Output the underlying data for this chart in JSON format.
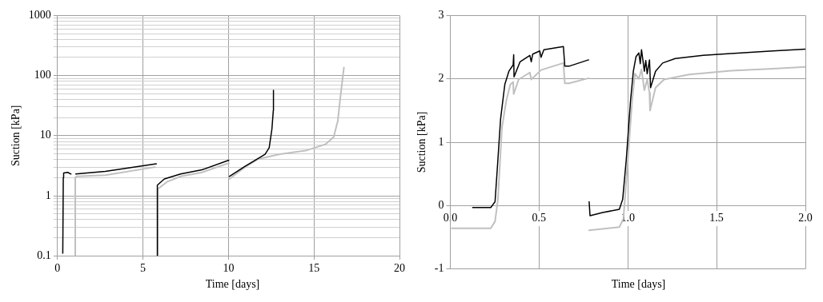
{
  "chart_data": [
    {
      "type": "line",
      "xlabel": "Time [days]",
      "ylabel": "Suction [kPa]",
      "log": "y",
      "grid": true,
      "marker": "none",
      "line_style": "solid",
      "xlim": [
        0,
        20
      ],
      "xticks": [
        0,
        5,
        10,
        15,
        20
      ],
      "ylim": [
        0.1,
        1000
      ],
      "yticks": [
        {
          "value": 0.1,
          "label": "0.1"
        },
        {
          "value": 0.2,
          "label": null
        },
        {
          "value": 0.3,
          "label": null
        },
        {
          "value": 0.4,
          "label": null
        },
        {
          "value": 0.5,
          "label": null
        },
        {
          "value": 0.6,
          "label": null
        },
        {
          "value": 0.7,
          "label": null
        },
        {
          "value": 0.8,
          "label": null
        },
        {
          "value": 0.9,
          "label": null
        },
        1,
        {
          "value": 2,
          "label": null
        },
        {
          "value": 3,
          "label": null
        },
        {
          "value": 4,
          "label": null
        },
        {
          "value": 5,
          "label": null
        },
        {
          "value": 6,
          "label": null
        },
        {
          "value": 7,
          "label": null
        },
        {
          "value": 8,
          "label": null
        },
        {
          "value": 9,
          "label": null
        },
        10,
        {
          "value": 20,
          "label": null
        },
        {
          "value": 30,
          "label": null
        },
        {
          "value": 40,
          "label": null
        },
        {
          "value": 50,
          "label": null
        },
        {
          "value": 60,
          "label": null
        },
        {
          "value": 70,
          "label": null
        },
        {
          "value": 80,
          "label": null
        },
        {
          "value": 90,
          "label": null
        },
        100,
        {
          "value": 200,
          "label": null
        },
        {
          "value": 300,
          "label": null
        },
        {
          "value": 400,
          "label": null
        },
        {
          "value": 500,
          "label": null
        },
        {
          "value": 600,
          "label": null
        },
        {
          "value": 700,
          "label": null
        },
        {
          "value": 800,
          "label": null
        },
        {
          "value": 900,
          "label": null
        },
        1000
      ],
      "series": [
        {
          "color": "#c0c0c0",
          "x": [
            1.04,
            1.04,
            1.1,
            2.8,
            5.7,
            null,
            5.86,
            5.87,
            6.4,
            7.2,
            8.45,
            10.02,
            null,
            10.05,
            10.97,
            11.75,
            13.0,
            14.58,
            15.68,
            16.15,
            16.39,
            16.54,
            16.75
          ],
          "values": [
            0.1,
            2.0,
            2.1,
            2.2,
            3.0,
            null,
            0.1,
            1.3,
            1.7,
            2.1,
            2.45,
            3.5,
            null,
            1.9,
            3.0,
            4.1,
            4.9,
            5.7,
            7.2,
            9.5,
            17.5,
            43,
            136
          ]
        },
        {
          "color": "#000000",
          "x": [
            0.31,
            0.34,
            0.36,
            0.6,
            0.79,
            null,
            1.07,
            2.8,
            5.78,
            null,
            5.83,
            5.84,
            6.25,
            7.2,
            8.45,
            10.02,
            null,
            10.05,
            10.97,
            11.75,
            12.14,
            12.38,
            12.54,
            12.62,
            12.63
          ],
          "values": [
            0.11,
            2.0,
            2.4,
            2.45,
            2.3,
            null,
            2.3,
            2.55,
            3.4,
            null,
            0.1,
            1.5,
            1.9,
            2.3,
            2.7,
            3.9,
            null,
            2.1,
            3.1,
            4.2,
            4.9,
            6.3,
            12.9,
            26,
            57
          ]
        }
      ]
    },
    {
      "type": "line",
      "xlabel": "Time [days]",
      "ylabel": "Suction [kPa]",
      "grid": true,
      "marker": "none",
      "line_style": "solid",
      "xlim": [
        0,
        2
      ],
      "xticks": [
        {
          "value": 0,
          "label": "0.0"
        },
        {
          "value": 0.5,
          "label": "0.5"
        },
        {
          "value": 1,
          "label": "1.0"
        },
        {
          "value": 1.5,
          "label": "1.5"
        },
        {
          "value": 2,
          "label": "2.0"
        }
      ],
      "ylim": [
        -1,
        3
      ],
      "yticks": [
        -1,
        0,
        1,
        2,
        3
      ],
      "series": [
        {
          "color": "#c0c0c0",
          "x": [
            0.008,
            0.228,
            0.252,
            0.268,
            0.291,
            0.315,
            0.338,
            0.354,
            0.357,
            0.385,
            0.448,
            0.456,
            0.511,
            0.637,
            0.645,
            0.669,
            0.779,
            null,
            0.782,
            0.952,
            0.975,
            1.0,
            1.024,
            1.04,
            1.062,
            1.077,
            1.093,
            1.109,
            1.122,
            1.125,
            1.156,
            1.204,
            1.345,
            1.581,
            1.817,
            2.0
          ],
          "values": [
            -0.36,
            -0.36,
            -0.25,
            0.09,
            1.23,
            1.65,
            1.91,
            1.95,
            1.76,
            1.99,
            2.1,
            1.99,
            2.14,
            2.25,
            1.93,
            1.93,
            2.01,
            null,
            -0.39,
            -0.34,
            -0.21,
            0.72,
            1.65,
            2.08,
            2.0,
            2.15,
            1.82,
            1.99,
            1.78,
            1.5,
            1.86,
            1.99,
            2.07,
            2.13,
            2.16,
            2.19
          ]
        },
        {
          "color": "#000000",
          "x": [
            0.126,
            0.228,
            0.252,
            0.268,
            0.283,
            0.307,
            0.33,
            0.354,
            0.357,
            0.359,
            0.393,
            0.448,
            0.456,
            0.464,
            0.504,
            0.511,
            0.527,
            0.637,
            0.645,
            0.669,
            0.779,
            null,
            0.782,
            0.787,
            0.858,
            0.952,
            0.971,
            0.991,
            1.015,
            1.031,
            1.046,
            1.062,
            1.07,
            1.077,
            1.093,
            1.101,
            1.109,
            1.122,
            1.128,
            1.156,
            1.196,
            1.267,
            1.424,
            1.581,
            1.817,
            2.0
          ],
          "values": [
            -0.03,
            -0.03,
            0.06,
            0.72,
            1.36,
            1.91,
            2.12,
            2.22,
            2.38,
            2.03,
            2.27,
            2.37,
            2.27,
            2.39,
            2.44,
            2.34,
            2.46,
            2.51,
            2.2,
            2.2,
            2.3,
            null,
            0.06,
            -0.16,
            -0.11,
            -0.06,
            0.1,
            0.72,
            1.65,
            2.12,
            2.35,
            2.41,
            2.24,
            2.46,
            2.12,
            2.29,
            2.08,
            2.3,
            1.86,
            2.12,
            2.25,
            2.32,
            2.37,
            2.4,
            2.44,
            2.47
          ]
        }
      ]
    }
  ]
}
